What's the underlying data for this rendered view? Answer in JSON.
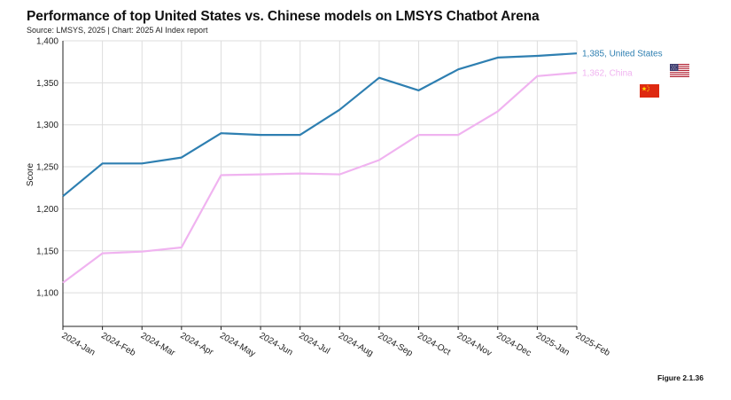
{
  "header": {
    "title": "Performance of top United States vs. Chinese models on LMSYS Chatbot Arena",
    "subtitle": "Source: LMSYS, 2025 | Chart: 2025 AI Index report"
  },
  "figure_label": "Figure 2.1.36",
  "colors": {
    "us": "#2e7fb1",
    "china": "#f0b3f0",
    "grid": "#dddddd",
    "axis": "#222222"
  },
  "icons": {
    "us": "us-flag-icon",
    "china": "china-flag-icon"
  },
  "chart_data": {
    "type": "line",
    "title": "Performance of top United States vs. Chinese models on LMSYS Chatbot Arena",
    "xlabel": "",
    "ylabel": "Score",
    "ylim": [
      1060,
      1400
    ],
    "yticks": [
      1100,
      1150,
      1200,
      1250,
      1300,
      1350,
      1400
    ],
    "ytick_labels": [
      "1,100",
      "1,150",
      "1,200",
      "1,250",
      "1,300",
      "1,350",
      "1,400"
    ],
    "grid": true,
    "categories": [
      "2024-Jan",
      "2024-Feb",
      "2024-Mar",
      "2024-Apr",
      "2024-May",
      "2024-Jun",
      "2024-Jul",
      "2024-Aug",
      "2024-Sep",
      "2024-Oct",
      "2024-Nov",
      "2024-Dec",
      "2025-Jan",
      "2025-Feb"
    ],
    "series": [
      {
        "name": "United States",
        "end_label": "1,385, United States",
        "color": "#2e7fb1",
        "values": [
          1215,
          1254,
          1254,
          1261,
          1290,
          1288,
          1288,
          1318,
          1356,
          1341,
          1366,
          1380,
          1382,
          1385
        ]
      },
      {
        "name": "China",
        "end_label": "1,362, China",
        "color": "#f0b3f0",
        "values": [
          1112,
          1147,
          1149,
          1154,
          1240,
          1241,
          1242,
          1241,
          1258,
          1288,
          1288,
          1316,
          1358,
          1362
        ]
      }
    ]
  }
}
